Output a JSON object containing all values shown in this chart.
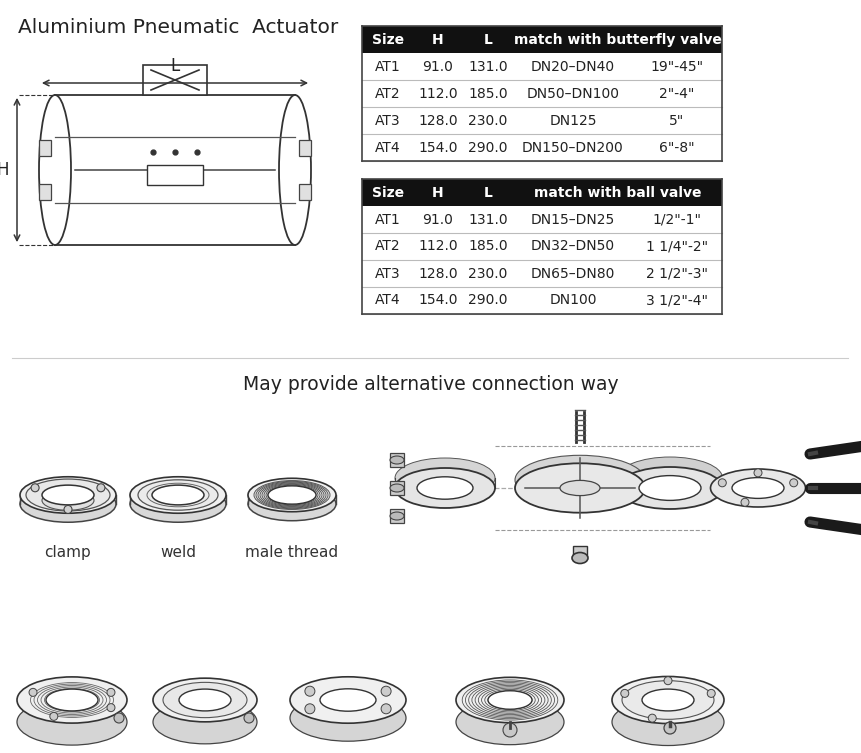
{
  "title": "Aluminium Pneumatic  Actuator",
  "bg_color": "#ffffff",
  "table1_data": [
    [
      "AT1",
      "91.0",
      "131.0",
      "DN20–DN40",
      "19\"-45\""
    ],
    [
      "AT2",
      "112.0",
      "185.0",
      "DN50–DN100",
      "2\"-4\""
    ],
    [
      "AT3",
      "128.0",
      "230.0",
      "DN125",
      "5\""
    ],
    [
      "AT4",
      "154.0",
      "290.0",
      "DN150–DN200",
      "6\"-8\""
    ]
  ],
  "table2_data": [
    [
      "AT1",
      "91.0",
      "131.0",
      "DN15–DN25",
      "1/2\"-1\""
    ],
    [
      "AT2",
      "112.0",
      "185.0",
      "DN32–DN50",
      "1 1/4\"-2\""
    ],
    [
      "AT3",
      "128.0",
      "230.0",
      "DN65–DN80",
      "2 1/2\"-3\""
    ],
    [
      "AT4",
      "154.0",
      "290.0",
      "DN100",
      "3 1/2\"-4\""
    ]
  ],
  "connection_title": "May provide alternative connection way",
  "connection_labels": [
    "clamp",
    "weld",
    "male thread"
  ],
  "header_bg": "#111111",
  "header_fg": "#ffffff",
  "row_line_color": "#bbbbbb",
  "text_color": "#222222",
  "line_color": "#333333"
}
